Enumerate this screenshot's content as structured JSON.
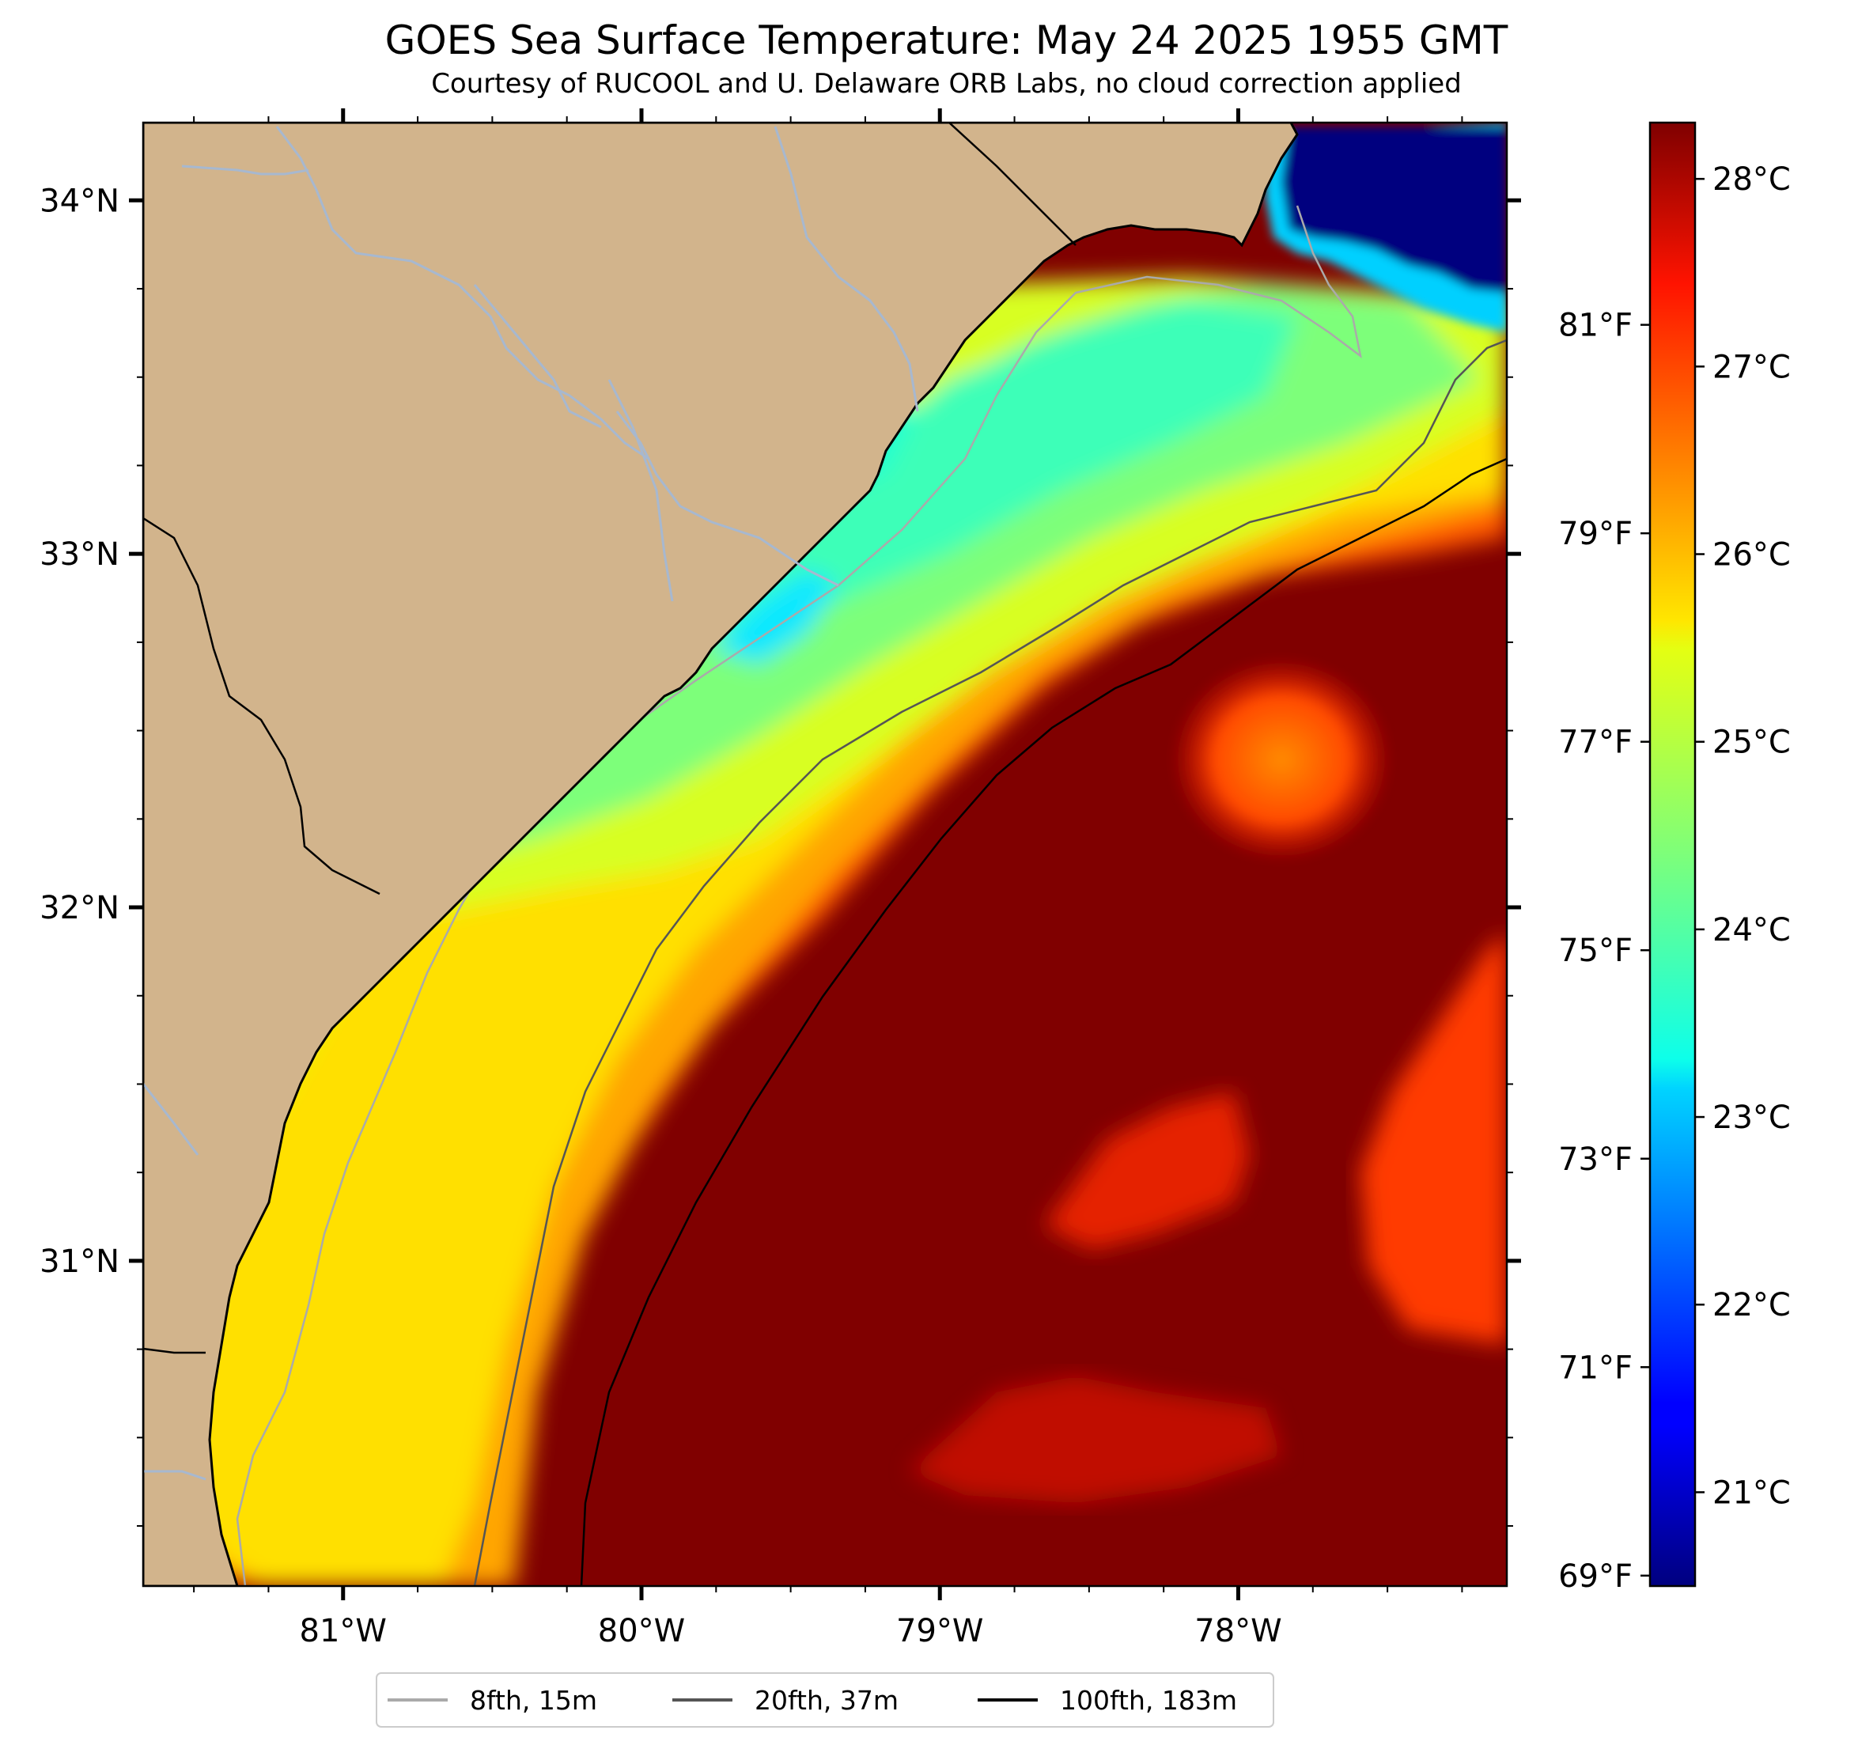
{
  "title": "GOES Sea Surface Temperature: May 24 2025 1955 GMT",
  "subtitle": "Courtesy of RUCOOL and U. Delaware ORB Labs, no cloud correction applied",
  "map": {
    "lon_range": [
      -81.67,
      -77.1
    ],
    "lat_range": [
      30.08,
      34.22
    ],
    "lat_ticks": [
      {
        "value": 34,
        "label": "34°N"
      },
      {
        "value": 33,
        "label": "33°N"
      },
      {
        "value": 32,
        "label": "32°N"
      },
      {
        "value": 31,
        "label": "31°N"
      }
    ],
    "lon_ticks": [
      {
        "value": -81,
        "label": "81°W"
      },
      {
        "value": -80,
        "label": "80°W"
      },
      {
        "value": -79,
        "label": "79°W"
      },
      {
        "value": -78,
        "label": "78°W"
      }
    ],
    "colors": {
      "land": "#d2b48c",
      "coastline": "#000000",
      "rivers": "#a7b8cf",
      "no_data": "#ffffff"
    }
  },
  "colorbar": {
    "colormap": "jet",
    "range_c": [
      20.5,
      28.3
    ],
    "celsius_ticks": [
      {
        "value": 28,
        "label": "28°C"
      },
      {
        "value": 27,
        "label": "27°C"
      },
      {
        "value": 26,
        "label": "26°C"
      },
      {
        "value": 25,
        "label": "25°C"
      },
      {
        "value": 24,
        "label": "24°C"
      },
      {
        "value": 23,
        "label": "23°C"
      },
      {
        "value": 22,
        "label": "22°C"
      },
      {
        "value": 21,
        "label": "21°C"
      }
    ],
    "fahrenheit_ticks": [
      {
        "value": 81,
        "label": "81°F"
      },
      {
        "value": 79,
        "label": "79°F"
      },
      {
        "value": 77,
        "label": "77°F"
      },
      {
        "value": 75,
        "label": "75°F"
      },
      {
        "value": 73,
        "label": "73°F"
      },
      {
        "value": 71,
        "label": "71°F"
      },
      {
        "value": 69,
        "label": "69°F"
      }
    ]
  },
  "legend": [
    {
      "label": "8fth, 15m",
      "color": "#aaaaaa"
    },
    {
      "label": "20fth, 37m",
      "color": "#555555"
    },
    {
      "label": "100fth, 183m",
      "color": "#000000"
    }
  ]
}
